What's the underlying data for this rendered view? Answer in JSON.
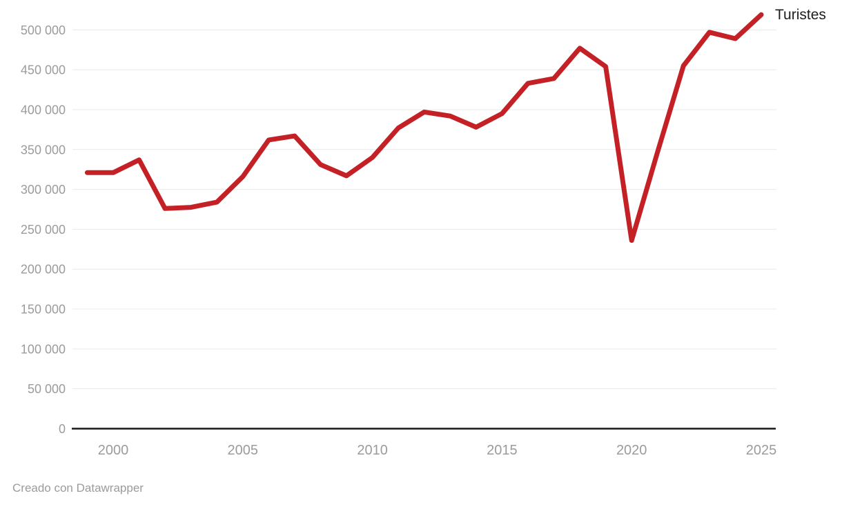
{
  "chart_data": {
    "type": "line",
    "title": "",
    "xlabel": "",
    "ylabel": "",
    "x_ticks": [
      2000,
      2005,
      2010,
      2015,
      2020,
      2025
    ],
    "y_ticks": [
      0,
      50000,
      100000,
      150000,
      200000,
      250000,
      300000,
      350000,
      400000,
      450000,
      500000
    ],
    "y_tick_labels": [
      "0",
      "50 000",
      "100 000",
      "150 000",
      "200 000",
      "250 000",
      "300 000",
      "350 000",
      "400 000",
      "450 000",
      "500 000"
    ],
    "xlim": [
      1999,
      2025
    ],
    "ylim": [
      0,
      520000
    ],
    "grid": true,
    "legend_position": "end-of-line",
    "series": [
      {
        "name": "Turistes",
        "color": "#c42127",
        "x": [
          1999,
          2000,
          2001,
          2002,
          2003,
          2004,
          2005,
          2006,
          2007,
          2008,
          2009,
          2010,
          2011,
          2012,
          2013,
          2014,
          2015,
          2016,
          2017,
          2018,
          2019,
          2020,
          2021,
          2022,
          2023,
          2024,
          2025
        ],
        "values": [
          321000,
          321000,
          337000,
          276000,
          277500,
          284000,
          316000,
          362000,
          367000,
          331000,
          317000,
          340000,
          377000,
          397000,
          392000,
          378000,
          395000,
          433000,
          439000,
          477000,
          454000,
          236000,
          347000,
          455000,
          497000,
          489000,
          519000
        ]
      }
    ]
  },
  "annotation": {
    "series_label": "Turistes"
  },
  "footer": {
    "attribution": "Creado con Datawrapper"
  },
  "colors": {
    "line": "#c42127",
    "axis": "#161616",
    "grid": "#e9e9e9",
    "tick_text": "#9b9b9b",
    "label_text": "#1d1d1d",
    "background": "#ffffff"
  }
}
